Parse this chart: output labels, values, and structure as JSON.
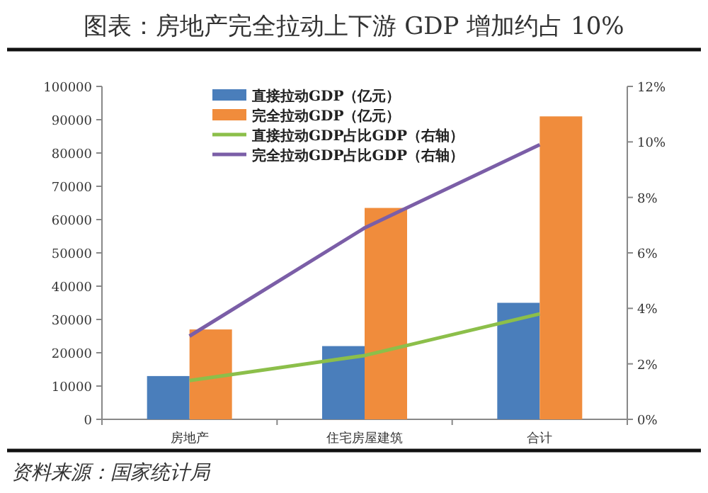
{
  "chart_data": {
    "type": "bar",
    "title": "图表：房地产完全拉动上下游 GDP 增加约占 10%",
    "categories": [
      "房地产",
      "住宅房屋建筑",
      "合计"
    ],
    "series": [
      {
        "name": "直接拉动GDP（亿元）",
        "color": "#4a7ebb",
        "values": [
          13000,
          22000,
          35000
        ]
      },
      {
        "name": "完全拉动GDP（亿元）",
        "color": "#f08c3c",
        "values": [
          27000,
          63500,
          91000
        ]
      },
      {
        "name": "直接拉动GDP占比GDP（右轴）",
        "type": "line",
        "axis": "y2",
        "color": "#8cbf4a",
        "values": [
          1.4,
          2.3,
          3.8
        ]
      },
      {
        "name": "完全拉动GDP占比GDP（右轴）",
        "type": "line",
        "axis": "y2",
        "color": "#7b5ea7",
        "values": [
          3.0,
          6.9,
          9.9
        ]
      }
    ],
    "ylim": [
      0,
      100000
    ],
    "yticks": [
      0,
      10000,
      20000,
      30000,
      40000,
      50000,
      60000,
      70000,
      80000,
      90000,
      100000
    ],
    "y2lim": [
      0,
      12
    ],
    "y2ticks": [
      {
        "value": 0,
        "label": "0%"
      },
      {
        "value": 2,
        "label": "2%"
      },
      {
        "value": 4,
        "label": "4%"
      },
      {
        "value": 6,
        "label": "6%"
      },
      {
        "value": 8,
        "label": "8%"
      },
      {
        "value": 10,
        "label": "10%"
      },
      {
        "value": 12,
        "label": "12%"
      }
    ],
    "legend": "top",
    "annotations": [
      "资料来源：国家统计局"
    ]
  }
}
